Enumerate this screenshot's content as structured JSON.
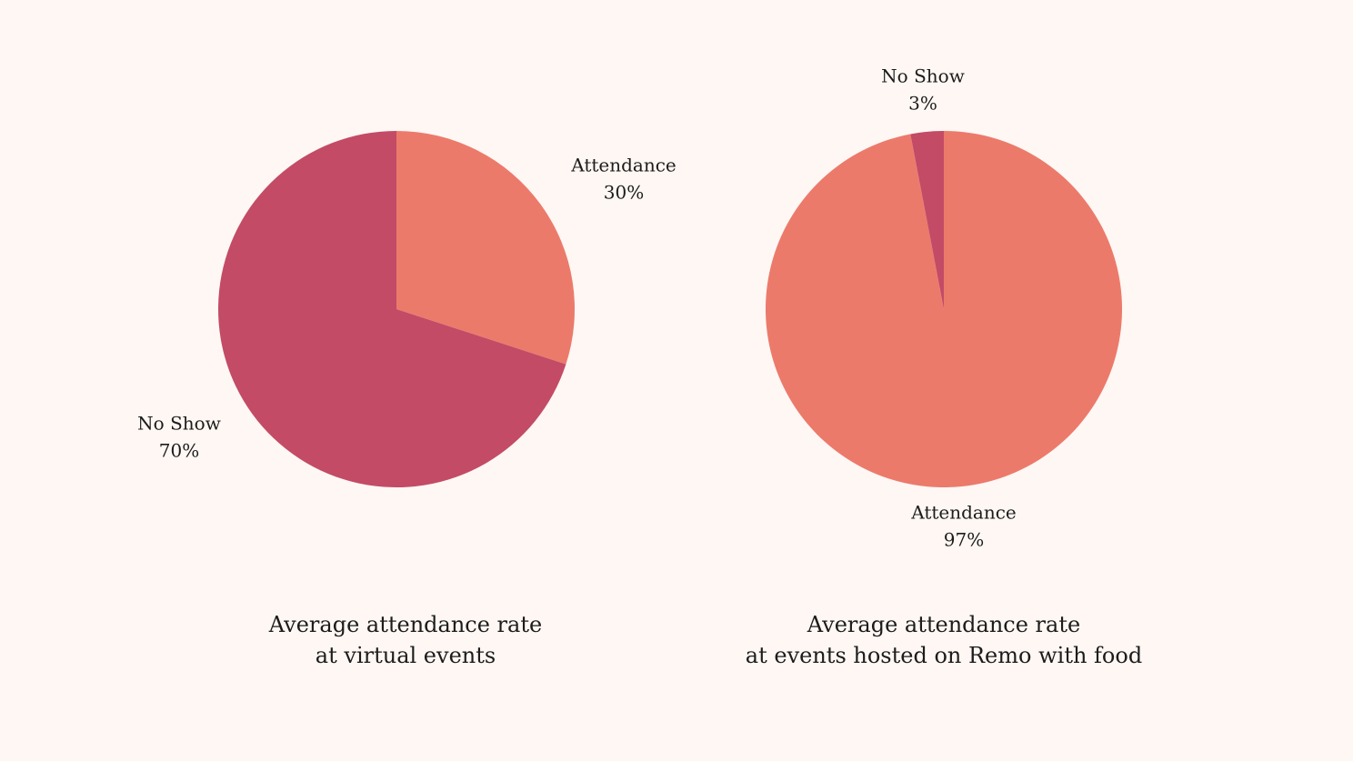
{
  "colors": {
    "background": "#fef7f3",
    "attendance": "#ec7a6b",
    "no_show": "#c34b66"
  },
  "chart_data": [
    {
      "type": "pie",
      "title": "Average attendance rate at virtual events",
      "title_lines": [
        "Average attendance rate",
        "at virtual events"
      ],
      "slices": [
        {
          "label": "Attendance",
          "value": 30,
          "display": "30%",
          "color": "#ec7a6b"
        },
        {
          "label": "No Show",
          "value": 70,
          "display": "70%",
          "color": "#c34b66"
        }
      ],
      "start_angle": "12 o'clock, clockwise",
      "legend": "none"
    },
    {
      "type": "pie",
      "title": "Average attendance rate at events hosted on Remo with food",
      "title_lines": [
        "Average attendance rate",
        "at events hosted on Remo with food"
      ],
      "slices": [
        {
          "label": "Attendance",
          "value": 97,
          "display": "97%",
          "color": "#ec7a6b"
        },
        {
          "label": "No Show",
          "value": 3,
          "display": "3%",
          "color": "#c34b66"
        }
      ],
      "start_angle": "12 o'clock, clockwise",
      "legend": "none"
    }
  ]
}
